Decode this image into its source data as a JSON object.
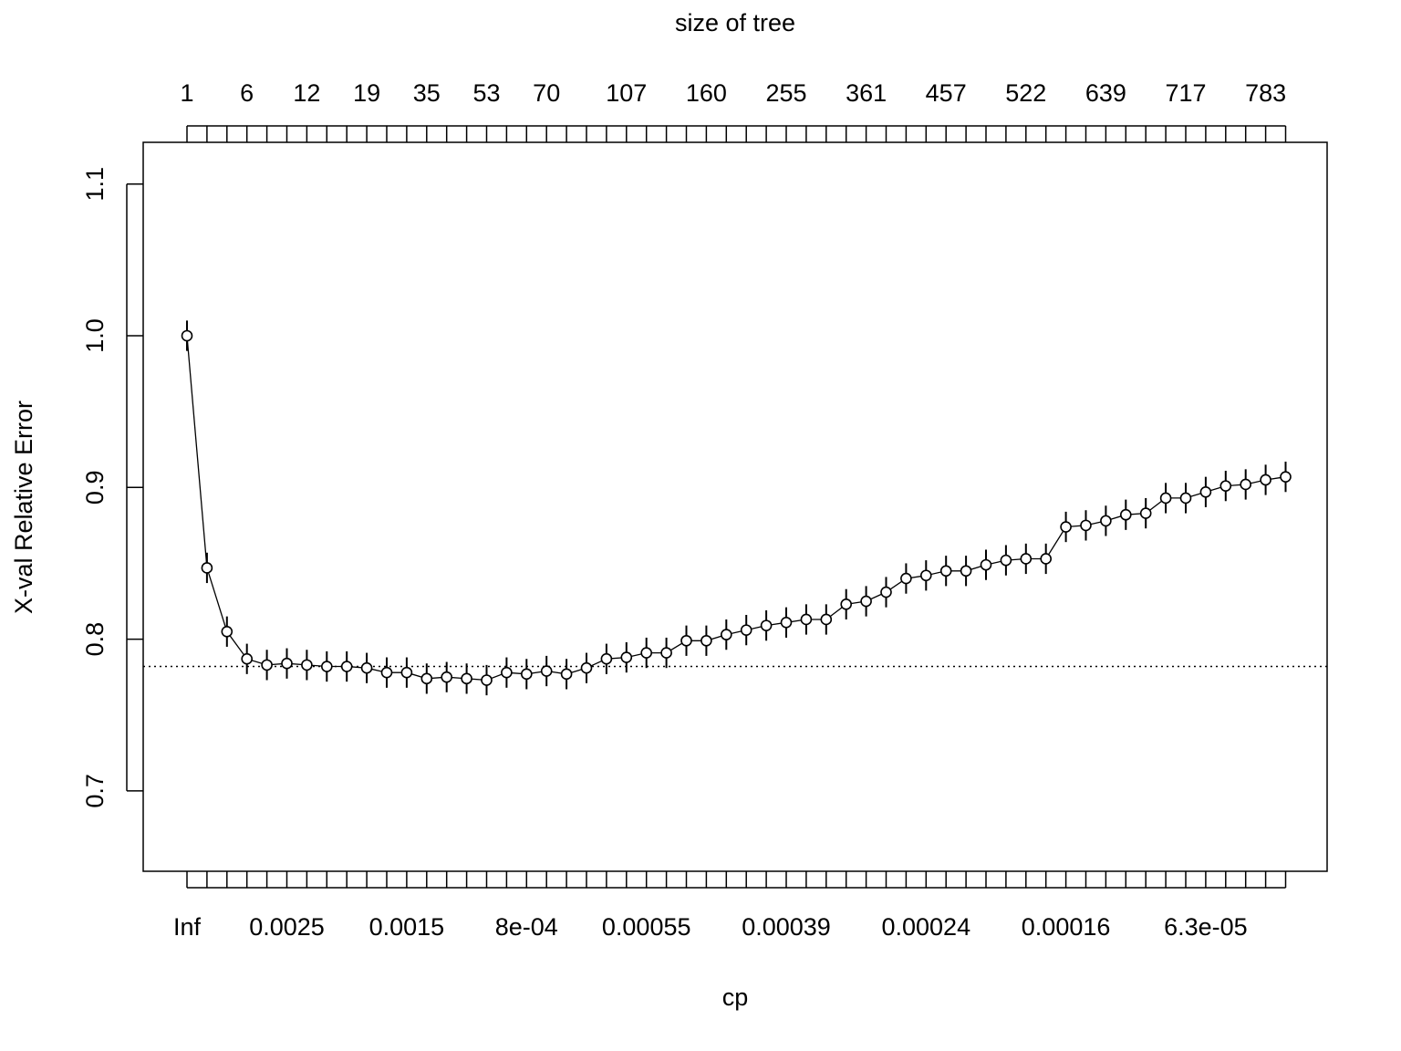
{
  "chart_data": {
    "type": "scatter",
    "title": "size of tree",
    "xlabel": "cp",
    "ylabel": "X-val Relative Error",
    "ylim": [
      0.65,
      1.12
    ],
    "y_ticks": [
      "0.7",
      "0.8",
      "0.9",
      "1.0",
      "1.1"
    ],
    "x_tick_labels": [
      {
        "index": 0,
        "label": "Inf"
      },
      {
        "index": 5,
        "label": "0.0025"
      },
      {
        "index": 11,
        "label": "0.0015"
      },
      {
        "index": 17,
        "label": "8e-04"
      },
      {
        "index": 23,
        "label": "0.00055"
      },
      {
        "index": 30,
        "label": "0.00039"
      },
      {
        "index": 37,
        "label": "0.00024"
      },
      {
        "index": 44,
        "label": "0.00016"
      },
      {
        "index": 51,
        "label": "6.3e-05"
      }
    ],
    "top_tick_labels": [
      {
        "index": 0,
        "label": "1"
      },
      {
        "index": 3,
        "label": "6"
      },
      {
        "index": 6,
        "label": "12"
      },
      {
        "index": 9,
        "label": "19"
      },
      {
        "index": 12,
        "label": "35"
      },
      {
        "index": 15,
        "label": "53"
      },
      {
        "index": 18,
        "label": "70"
      },
      {
        "index": 22,
        "label": "107"
      },
      {
        "index": 26,
        "label": "160"
      },
      {
        "index": 30,
        "label": "255"
      },
      {
        "index": 34,
        "label": "361"
      },
      {
        "index": 38,
        "label": "457"
      },
      {
        "index": 42,
        "label": "522"
      },
      {
        "index": 46,
        "label": "639"
      },
      {
        "index": 50,
        "label": "717"
      },
      {
        "index": 54,
        "label": "783"
      }
    ],
    "series": [
      {
        "values": [
          1.0,
          0.847,
          0.805,
          0.787,
          0.783,
          0.784,
          0.783,
          0.782,
          0.782,
          0.781,
          0.778,
          0.778,
          0.774,
          0.775,
          0.774,
          0.773,
          0.778,
          0.777,
          0.779,
          0.777,
          0.781,
          0.787,
          0.788,
          0.791,
          0.791,
          0.799,
          0.799,
          0.803,
          0.806,
          0.809,
          0.811,
          0.813,
          0.813,
          0.823,
          0.825,
          0.831,
          0.84,
          0.842,
          0.845,
          0.845,
          0.849,
          0.852,
          0.853,
          0.853,
          0.874,
          0.875,
          0.878,
          0.882,
          0.883,
          0.893,
          0.893,
          0.897,
          0.901,
          0.902,
          0.905,
          0.907
        ],
        "se": [
          0.01,
          0.01,
          0.01,
          0.01,
          0.01,
          0.01,
          0.01,
          0.01,
          0.01,
          0.01,
          0.01,
          0.01,
          0.01,
          0.01,
          0.01,
          0.01,
          0.01,
          0.01,
          0.01,
          0.01,
          0.01,
          0.01,
          0.01,
          0.01,
          0.01,
          0.01,
          0.01,
          0.01,
          0.01,
          0.01,
          0.01,
          0.01,
          0.01,
          0.01,
          0.01,
          0.01,
          0.01,
          0.01,
          0.01,
          0.01,
          0.01,
          0.01,
          0.01,
          0.01,
          0.01,
          0.01,
          0.01,
          0.01,
          0.01,
          0.01,
          0.01,
          0.01,
          0.01,
          0.01,
          0.01,
          0.01
        ]
      }
    ],
    "reference_line": {
      "y": 0.782,
      "style": "dotted"
    }
  }
}
